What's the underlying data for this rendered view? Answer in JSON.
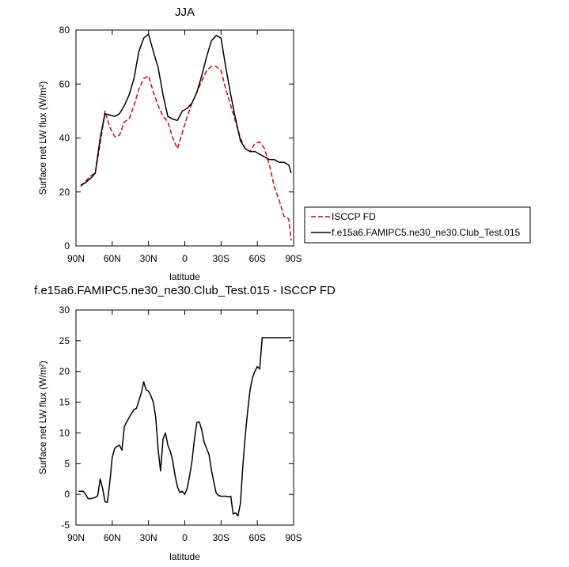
{
  "chart_data": [
    {
      "type": "line",
      "title": "JJA",
      "xlabel": "latitude",
      "ylabel": "Surface net LW flux (W/m²)",
      "xlim": [
        90,
        -90
      ],
      "ylim": [
        0,
        80
      ],
      "xticks": [
        90,
        60,
        30,
        0,
        -30,
        -60,
        -90
      ],
      "xtick_labels": [
        "90N",
        "60N",
        "30N",
        "0",
        "30S",
        "60S",
        "90S"
      ],
      "yticks": [
        0,
        20,
        40,
        60,
        80
      ],
      "ytick_labels": [
        "0",
        "20",
        "40",
        "60",
        "80"
      ],
      "legend_position": "right",
      "series": [
        {
          "name": "ISCCP FD",
          "color": "#e00000",
          "dash": true,
          "x": [
            86,
            82,
            78,
            74,
            70,
            66,
            62,
            58,
            54,
            50,
            46,
            42,
            38,
            34,
            30,
            26,
            22,
            18,
            14,
            10,
            6,
            2,
            -2,
            -6,
            -10,
            -14,
            -18,
            -22,
            -26,
            -30,
            -34,
            -38,
            -42,
            -46,
            -50,
            -54,
            -58,
            -62,
            -66,
            -70,
            -74,
            -78,
            -82,
            -86,
            -88
          ],
          "y": [
            22,
            24,
            26,
            27,
            38,
            50,
            44,
            40.5,
            41,
            46,
            47,
            52,
            58,
            62,
            63,
            57,
            52,
            48,
            46,
            40,
            36,
            42,
            48,
            53,
            57,
            61,
            65,
            66.5,
            66.5,
            65,
            58,
            52,
            46,
            40,
            36,
            35,
            38,
            38.5,
            36,
            30,
            22,
            17,
            11,
            10,
            2
          ]
        },
        {
          "name": "f.e15a6.FAMIPC5.ne30_ne30.Club_Test.015",
          "color": "#000000",
          "dash": false,
          "x": [
            86,
            82,
            78,
            74,
            70,
            66,
            62,
            58,
            54,
            50,
            46,
            42,
            38,
            34,
            30,
            26,
            22,
            18,
            14,
            10,
            6,
            2,
            -2,
            -6,
            -10,
            -14,
            -18,
            -22,
            -26,
            -30,
            -34,
            -38,
            -42,
            -46,
            -50,
            -54,
            -58,
            -62,
            -66,
            -70,
            -74,
            -78,
            -82,
            -86,
            -88
          ],
          "y": [
            22.5,
            23.5,
            25,
            27,
            40,
            49,
            48.5,
            48,
            49,
            52,
            56,
            62,
            72,
            77,
            78.5,
            72,
            66,
            56,
            48,
            47,
            46.5,
            50,
            51,
            53,
            57,
            63,
            70,
            76,
            78,
            77,
            66,
            56,
            47,
            39,
            36,
            35,
            35,
            34,
            33,
            32,
            32,
            31,
            31,
            30,
            27
          ]
        }
      ]
    },
    {
      "type": "line",
      "title": "f.e15a6.FAMIPC5.ne30_ne30.Club_Test.015 - ISCCP FD",
      "xlabel": "latitude",
      "ylabel": "Surface net LW flux (W/m²)",
      "xlim": [
        90,
        -90
      ],
      "ylim": [
        -5,
        30
      ],
      "xticks": [
        90,
        60,
        30,
        0,
        -30,
        -60,
        -90
      ],
      "xtick_labels": [
        "90N",
        "60N",
        "30N",
        "0",
        "30S",
        "60S",
        "90S"
      ],
      "yticks": [
        -5,
        0,
        5,
        10,
        15,
        20,
        25,
        30
      ],
      "ytick_labels": [
        "-5",
        "0",
        "5",
        "10",
        "15",
        "20",
        "25",
        "30"
      ],
      "series": [
        {
          "color": "#000000",
          "dash": false,
          "x": [
            88,
            86,
            84,
            82,
            80,
            78,
            76,
            74,
            72,
            70,
            68,
            66,
            64,
            62,
            60,
            58,
            56,
            54,
            52,
            50,
            48,
            46,
            44,
            42,
            40,
            38,
            36,
            34,
            32,
            30,
            28,
            26,
            24,
            22,
            20,
            18,
            16,
            14,
            12,
            10,
            8,
            6,
            4,
            2,
            0,
            -2,
            -4,
            -6,
            -8,
            -10,
            -12,
            -14,
            -16,
            -18,
            -20,
            -22,
            -24,
            -26,
            -28,
            -30,
            -32,
            -34,
            -36,
            -38,
            -40,
            -42,
            -44,
            -46,
            -48,
            -50,
            -52,
            -54,
            -56,
            -58,
            -60,
            -62,
            -64,
            -66,
            -68,
            -70,
            -72,
            -74,
            -76,
            -78,
            -80,
            -82,
            -84,
            -86,
            -88
          ],
          "y": [
            0.5,
            0.5,
            0.5,
            0,
            -0.7,
            -0.7,
            -0.6,
            -0.5,
            -0.2,
            2.5,
            1.0,
            -1.2,
            -1.3,
            2.0,
            6.0,
            7.5,
            7.8,
            8.0,
            7.2,
            11.0,
            11.8,
            12.5,
            13.2,
            13.8,
            14.0,
            15.2,
            16.5,
            18.3,
            17.0,
            16.8,
            16.0,
            15.0,
            12.5,
            7.2,
            3.8,
            9.0,
            10.0,
            8.0,
            7.0,
            5.5,
            3.0,
            1.2,
            0.3,
            0.5,
            0.0,
            1.0,
            3.0,
            5.5,
            9.0,
            11.7,
            11.8,
            10.5,
            8.5,
            7.5,
            6.5,
            4.0,
            2.0,
            0.2,
            -0.2,
            -0.3,
            -0.3,
            -0.3,
            -0.4,
            -0.3,
            -3.2,
            -3.0,
            -3.5,
            -1.5,
            4.5,
            9.5,
            13.5,
            17.0,
            19.0,
            20.0,
            20.8,
            20.4,
            25.5,
            25.5,
            25.5,
            25.5,
            25.5,
            25.5,
            25.5,
            25.5,
            25.5,
            25.5,
            25.5,
            25.5,
            25.5
          ]
        }
      ]
    }
  ]
}
